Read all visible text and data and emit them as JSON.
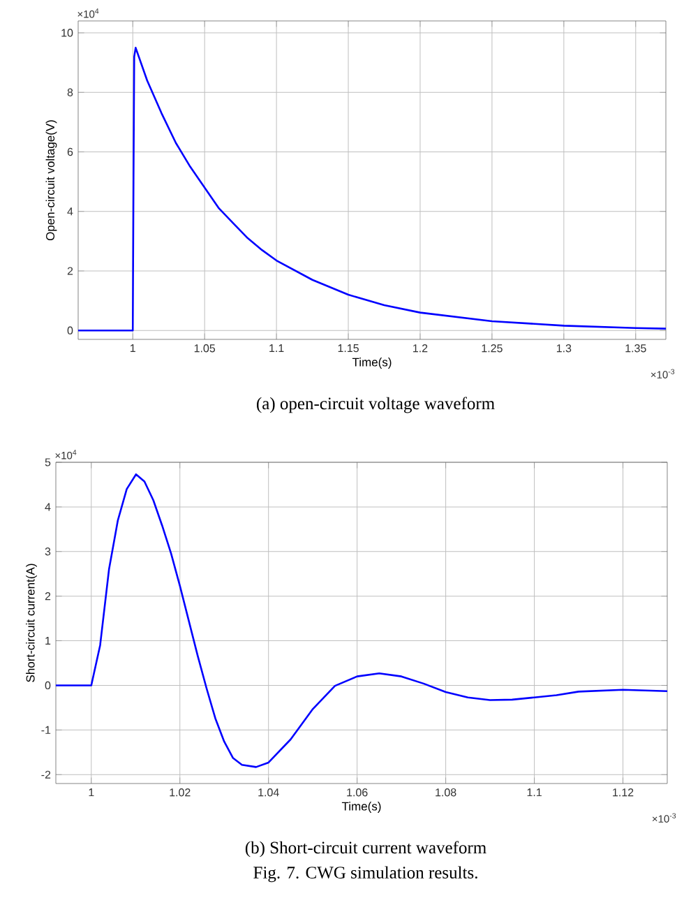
{
  "chart_data": [
    {
      "type": "line",
      "xlabel": "Time(s)",
      "ylabel": "Open-circuit voltage(V)",
      "annotations": [
        "×10$^{4}$",
        "×10$^{-3}$",
        "(a) open-circuit voltage waveform"
      ],
      "x": [
        0.962,
        1.0,
        1.0005,
        1.001,
        1.002,
        1.01,
        1.02,
        1.03,
        1.04,
        1.05,
        1.06,
        1.07,
        1.08,
        1.09,
        1.1,
        1.125,
        1.15,
        1.175,
        1.2,
        1.25,
        1.3,
        1.35,
        1.371
      ],
      "series": [
        {
          "color": "#0000ff",
          "values": [
            0,
            0,
            5,
            9.2,
            9.5,
            8.4,
            7.3,
            6.3,
            5.5,
            4.8,
            4.1,
            3.6,
            3.1,
            2.7,
            2.35,
            1.7,
            1.2,
            0.85,
            0.6,
            0.31,
            0.16,
            0.08,
            0.06
          ]
        }
      ],
      "xlim": [
        0.962,
        1.371
      ],
      "ylim": [
        -0.3,
        10.4
      ],
      "xticks": [
        1,
        1.05,
        1.1,
        1.15,
        1.2,
        1.25,
        1.3,
        1.35
      ],
      "yticks": [
        0,
        2,
        4,
        6,
        8,
        10
      ],
      "grid": true,
      "marker": "none",
      "line_style": "solid"
    },
    {
      "type": "line",
      "xlabel": "Time(s)",
      "ylabel": "Short-circuit current(A)",
      "annotations": [
        "×10$^{4}$",
        "×10$^{-3}$",
        "(b) Short-circuit current waveform",
        "Fig. 7. CWG simulation results."
      ],
      "x": [
        0.992,
        1.0,
        1.002,
        1.004,
        1.006,
        1.008,
        1.0101,
        1.012,
        1.014,
        1.016,
        1.018,
        1.02,
        1.022,
        1.024,
        1.026,
        1.028,
        1.03,
        1.032,
        1.034,
        1.0372,
        1.04,
        1.045,
        1.05,
        1.055,
        1.06,
        1.065,
        1.07,
        1.075,
        1.08,
        1.085,
        1.09,
        1.095,
        1.1,
        1.105,
        1.11,
        1.12,
        1.13
      ],
      "series": [
        {
          "color": "#0000ff",
          "values": [
            0,
            0,
            0.9,
            2.6,
            3.7,
            4.4,
            4.73,
            4.57,
            4.15,
            3.58,
            2.96,
            2.23,
            1.45,
            0.67,
            -0.06,
            -0.74,
            -1.26,
            -1.63,
            -1.78,
            -1.83,
            -1.73,
            -1.21,
            -0.53,
            -0.01,
            0.2,
            0.27,
            0.2,
            0.04,
            -0.15,
            -0.27,
            -0.33,
            -0.32,
            -0.27,
            -0.22,
            -0.14,
            -0.1,
            -0.13
          ]
        }
      ],
      "xlim": [
        0.992,
        1.13
      ],
      "ylim": [
        -2.2,
        5
      ],
      "xticks": [
        1,
        1.02,
        1.04,
        1.06,
        1.08,
        1.1,
        1.12
      ],
      "yticks": [
        -2,
        -1,
        0,
        1,
        2,
        3,
        4,
        5
      ],
      "grid": true,
      "marker": "none",
      "line_style": "solid"
    }
  ]
}
